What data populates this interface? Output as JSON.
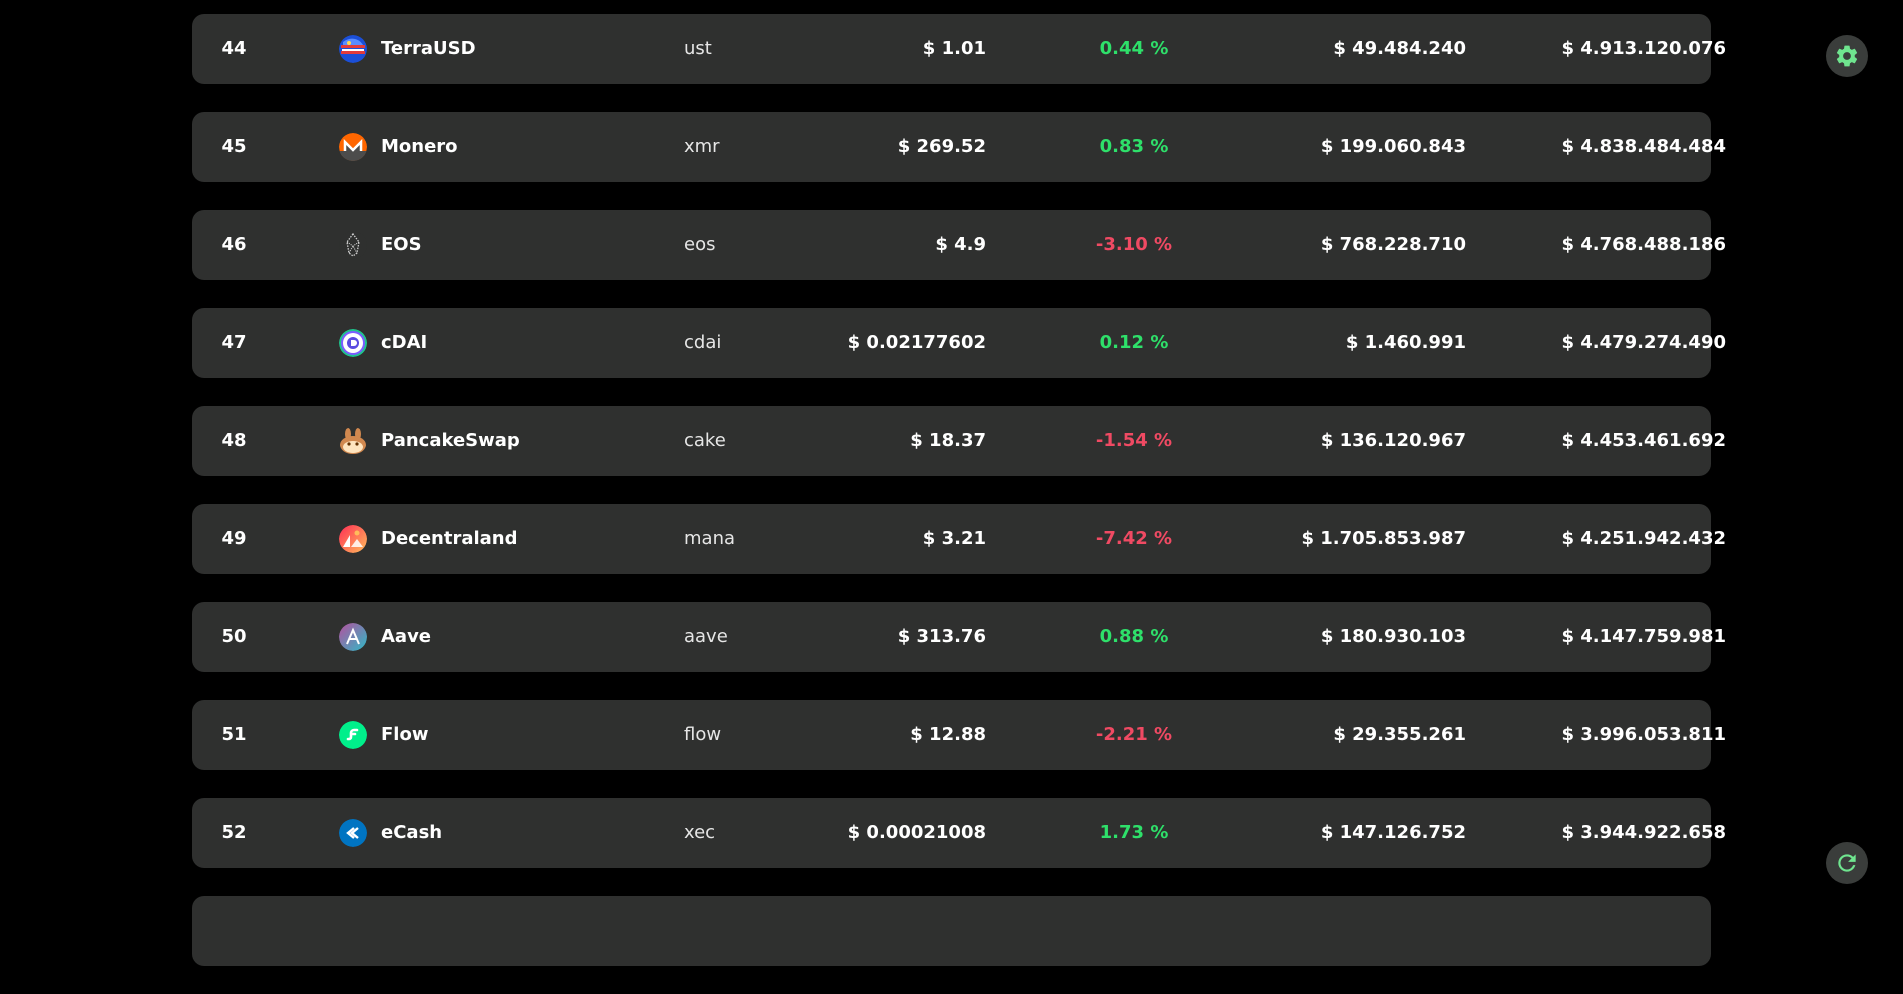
{
  "colors": {
    "background": "#000000",
    "row_bg": "#2f302f",
    "positive": "#2ee06a",
    "negative": "#f04a63",
    "fab_icon": "#6fe58f"
  },
  "fabs": {
    "settings_icon": "gear-icon",
    "refresh_icon": "refresh-icon"
  },
  "coins": [
    {
      "rank": "44",
      "name": "TerraUSD",
      "symbol": "ust",
      "price": "$ 1.01",
      "change": "0.44 %",
      "trend": "up",
      "volume": "$ 49.484.240",
      "market_cap": "$ 4.913.120.076",
      "icon": "terrausd-logo-icon"
    },
    {
      "rank": "45",
      "name": "Monero",
      "symbol": "xmr",
      "price": "$ 269.52",
      "change": "0.83 %",
      "trend": "up",
      "volume": "$ 199.060.843",
      "market_cap": "$ 4.838.484.484",
      "icon": "monero-logo-icon"
    },
    {
      "rank": "46",
      "name": "EOS",
      "symbol": "eos",
      "price": "$ 4.9",
      "change": "-3.10 %",
      "trend": "down",
      "volume": "$ 768.228.710",
      "market_cap": "$ 4.768.488.186",
      "icon": "eos-logo-icon"
    },
    {
      "rank": "47",
      "name": "cDAI",
      "symbol": "cdai",
      "price": "$ 0.02177602",
      "change": "0.12 %",
      "trend": "up",
      "volume": "$ 1.460.991",
      "market_cap": "$ 4.479.274.490",
      "icon": "cdai-logo-icon"
    },
    {
      "rank": "48",
      "name": "PancakeSwap",
      "symbol": "cake",
      "price": "$ 18.37",
      "change": "-1.54 %",
      "trend": "down",
      "volume": "$ 136.120.967",
      "market_cap": "$ 4.453.461.692",
      "icon": "pancakeswap-logo-icon"
    },
    {
      "rank": "49",
      "name": "Decentraland",
      "symbol": "mana",
      "price": "$ 3.21",
      "change": "-7.42 %",
      "trend": "down",
      "volume": "$ 1.705.853.987",
      "market_cap": "$ 4.251.942.432",
      "icon": "decentraland-logo-icon"
    },
    {
      "rank": "50",
      "name": "Aave",
      "symbol": "aave",
      "price": "$ 313.76",
      "change": "0.88 %",
      "trend": "up",
      "volume": "$ 180.930.103",
      "market_cap": "$ 4.147.759.981",
      "icon": "aave-logo-icon"
    },
    {
      "rank": "51",
      "name": "Flow",
      "symbol": "flow",
      "price": "$ 12.88",
      "change": "-2.21 %",
      "trend": "down",
      "volume": "$ 29.355.261",
      "market_cap": "$ 3.996.053.811",
      "icon": "flow-logo-icon"
    },
    {
      "rank": "52",
      "name": "eCash",
      "symbol": "xec",
      "price": "$ 0.00021008",
      "change": "1.73 %",
      "trend": "up",
      "volume": "$ 147.126.752",
      "market_cap": "$ 3.944.922.658",
      "icon": "ecash-logo-icon"
    }
  ]
}
